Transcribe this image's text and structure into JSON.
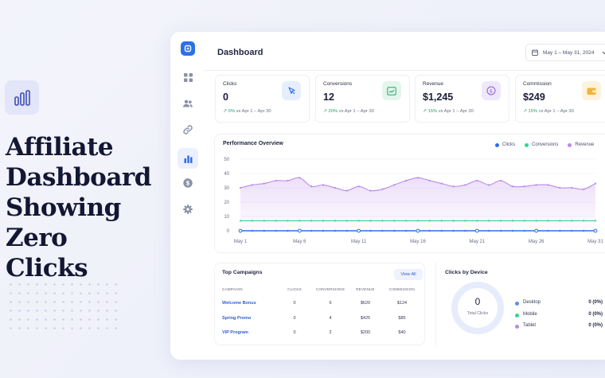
{
  "hero": {
    "title_lines": [
      "Affiliate",
      "Dashboard",
      "Showing Zero",
      "Clicks"
    ],
    "icon": "bar-chart-icon"
  },
  "app": {
    "title": "Dashboard",
    "date_range": "May 1 – May 31, 2024",
    "nav_icons": [
      "grid-icon",
      "users-icon",
      "link-icon",
      "bar-chart-icon",
      "dollar-icon",
      "gear-icon"
    ],
    "active_nav": "bar-chart-icon",
    "accent": "#2f6fe8"
  },
  "kpis": [
    {
      "label": "Clicks",
      "value": "0",
      "delta": "0%",
      "compare": "vs Apr 1 – Apr 30",
      "icon": "cursor-icon",
      "icon_bg": "#e6eefc",
      "icon_color": "#2f6fe8"
    },
    {
      "label": "Conversions",
      "value": "12",
      "delta": "20%",
      "compare": "vs Apr 1 – Apr 30",
      "icon": "trend-up-icon",
      "icon_bg": "#e3f6ec",
      "icon_color": "#23a86e"
    },
    {
      "label": "Revenue",
      "value": "$1,245",
      "delta": "15%",
      "compare": "vs Apr 1 – Apr 30",
      "icon": "coin-icon",
      "icon_bg": "#efe8fb",
      "icon_color": "#8a5ad8"
    },
    {
      "label": "Commission",
      "value": "$249",
      "delta": "15%",
      "compare": "vs Apr 1 – Apr 30",
      "icon": "wallet-icon",
      "icon_bg": "#fdf2dd",
      "icon_color": "#e9a227"
    }
  ],
  "performance": {
    "title": "Performance Overview",
    "legend": [
      {
        "name": "Clicks",
        "color": "#2f6fe8"
      },
      {
        "name": "Conversions",
        "color": "#3fcf98"
      },
      {
        "name": "Revenue",
        "color": "#b98ae6"
      }
    ]
  },
  "chart_data": {
    "type": "line",
    "x": [
      1,
      2,
      3,
      4,
      5,
      6,
      7,
      8,
      9,
      10,
      11,
      12,
      13,
      14,
      15,
      16,
      17,
      18,
      19,
      20,
      21,
      22,
      23,
      24,
      25,
      26,
      27,
      28,
      29,
      30,
      31
    ],
    "x_tick_labels": [
      "May 1",
      "May 6",
      "May 11",
      "May 16",
      "May 21",
      "May 26",
      "May 31"
    ],
    "x_tick_values": [
      1,
      6,
      11,
      16,
      21,
      26,
      31
    ],
    "ylim": [
      0,
      50
    ],
    "y_ticks": [
      0,
      10,
      20,
      30,
      40,
      50
    ],
    "series": [
      {
        "name": "Clicks",
        "color": "#2f6fe8",
        "values": [
          0,
          0,
          0,
          0,
          0,
          0,
          0,
          0,
          0,
          0,
          0,
          0,
          0,
          0,
          0,
          0,
          0,
          0,
          0,
          0,
          0,
          0,
          0,
          0,
          0,
          0,
          0,
          0,
          0,
          0,
          0
        ]
      },
      {
        "name": "Conversions",
        "color": "#3fcf98",
        "values": [
          7,
          7,
          7,
          7,
          7,
          7,
          7,
          7,
          7,
          7,
          7,
          7,
          7,
          7,
          7,
          7,
          7,
          7,
          7,
          7,
          7,
          7,
          7,
          7,
          7,
          7,
          7,
          7,
          7,
          7,
          7
        ]
      },
      {
        "name": "Revenue",
        "color": "#b98ae6",
        "values": [
          30,
          32,
          33,
          35,
          35,
          37,
          31,
          32,
          30,
          28,
          31,
          28,
          29,
          32,
          35,
          37,
          35,
          33,
          31,
          32,
          35,
          32,
          35,
          31,
          31,
          32,
          32,
          30,
          30,
          29,
          33
        ]
      }
    ],
    "grid": true,
    "legend_position": "top-right"
  },
  "campaigns": {
    "title": "Top Campaigns",
    "view_all": "View All",
    "columns": [
      "CAMPAIGN",
      "CLICKS",
      "CONVERSIONS",
      "REVENUE",
      "COMMISSION"
    ],
    "rows": [
      [
        "Welcome Bonus",
        "0",
        "6",
        "$620",
        "$124"
      ],
      [
        "Spring Promo",
        "0",
        "4",
        "$425",
        "$85"
      ],
      [
        "VIP Program",
        "0",
        "2",
        "$200",
        "$40"
      ]
    ]
  },
  "devices": {
    "title": "Clicks by Device",
    "total_value": "0",
    "total_label": "Total Clicks",
    "items": [
      {
        "name": "Desktop",
        "value": "0 (0%)",
        "color": "#5b8ff0"
      },
      {
        "name": "Mobile",
        "value": "0 (0%)",
        "color": "#3fcf98"
      },
      {
        "name": "Tablet",
        "value": "0 (0%)",
        "color": "#b98ae6"
      }
    ]
  }
}
